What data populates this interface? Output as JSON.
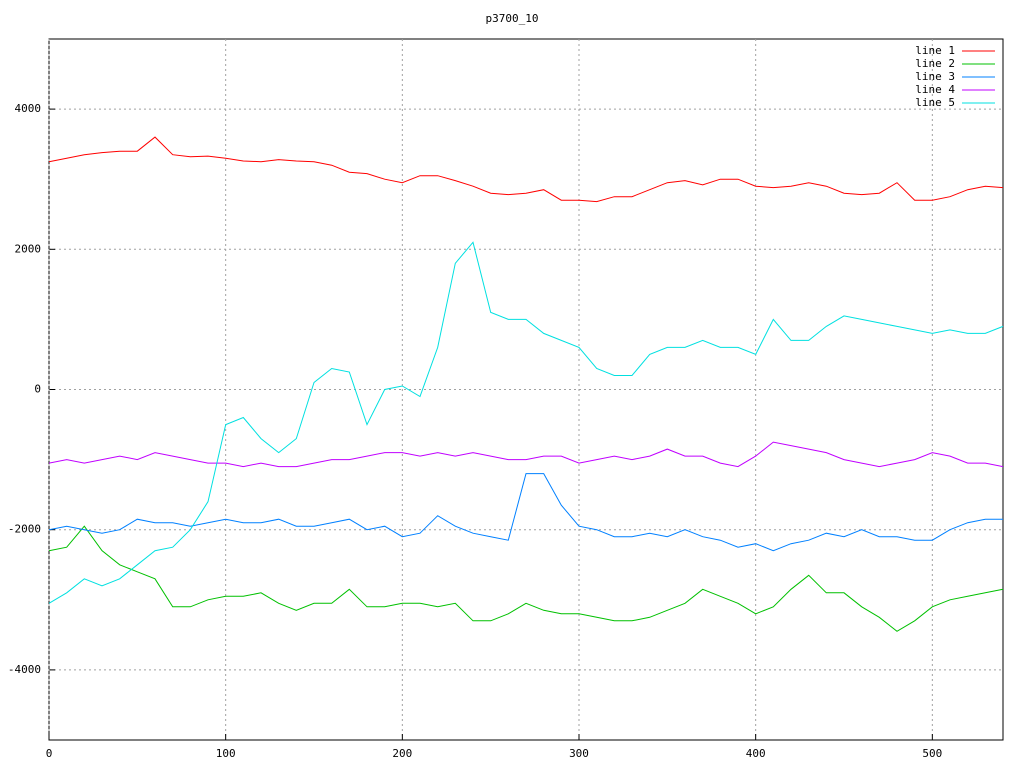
{
  "chart_data": {
    "type": "line",
    "title": "p3700_10",
    "x": [
      0,
      10,
      20,
      30,
      40,
      50,
      60,
      70,
      80,
      90,
      100,
      110,
      120,
      130,
      140,
      150,
      160,
      170,
      180,
      190,
      200,
      210,
      220,
      230,
      240,
      250,
      260,
      270,
      280,
      290,
      300,
      310,
      320,
      330,
      340,
      350,
      360,
      370,
      380,
      390,
      400,
      410,
      420,
      430,
      440,
      450,
      460,
      470,
      480,
      490,
      500,
      510,
      520,
      530,
      540
    ],
    "series": [
      {
        "name": "line 1",
        "color": "#ff0000",
        "values": [
          3250,
          3300,
          3350,
          3380,
          3400,
          3400,
          3600,
          3350,
          3320,
          3330,
          3300,
          3260,
          3250,
          3280,
          3260,
          3250,
          3200,
          3100,
          3080,
          3000,
          2950,
          3050,
          3050,
          2980,
          2900,
          2800,
          2780,
          2800,
          2850,
          2700,
          2700,
          2680,
          2750,
          2750,
          2850,
          2950,
          2980,
          2920,
          3000,
          3000,
          2900,
          2880,
          2900,
          2950,
          2900,
          2800,
          2780,
          2800,
          2950,
          2700,
          2700,
          2750,
          2850,
          2900,
          2880
        ]
      },
      {
        "name": "line 2",
        "color": "#00c000",
        "values": [
          -2300,
          -2250,
          -1950,
          -2300,
          -2500,
          -2600,
          -2700,
          -3100,
          -3100,
          -3000,
          -2950,
          -2950,
          -2900,
          -3050,
          -3150,
          -3050,
          -3050,
          -2850,
          -3100,
          -3100,
          -3050,
          -3050,
          -3100,
          -3050,
          -3300,
          -3300,
          -3200,
          -3050,
          -3150,
          -3200,
          -3200,
          -3250,
          -3300,
          -3300,
          -3250,
          -3150,
          -3050,
          -2850,
          -2950,
          -3050,
          -3200,
          -3100,
          -2850,
          -2650,
          -2900,
          -2900,
          -3100,
          -3250,
          -3450,
          -3300,
          -3100,
          -3000,
          -2950,
          -2900,
          -2850
        ]
      },
      {
        "name": "line 3",
        "color": "#0080ff",
        "values": [
          -2000,
          -1950,
          -2000,
          -2050,
          -2000,
          -1850,
          -1900,
          -1900,
          -1950,
          -1900,
          -1850,
          -1900,
          -1900,
          -1850,
          -1950,
          -1950,
          -1900,
          -1850,
          -2000,
          -1950,
          -2100,
          -2050,
          -1800,
          -1950,
          -2050,
          -2100,
          -2150,
          -1200,
          -1200,
          -1650,
          -1950,
          -2000,
          -2100,
          -2100,
          -2050,
          -2100,
          -2000,
          -2100,
          -2150,
          -2250,
          -2200,
          -2300,
          -2200,
          -2150,
          -2050,
          -2100,
          -2000,
          -2100,
          -2100,
          -2150,
          -2150,
          -2000,
          -1900,
          -1850,
          -1850
        ]
      },
      {
        "name": "line 4",
        "color": "#c000ff",
        "values": [
          -1050,
          -1000,
          -1050,
          -1000,
          -950,
          -1000,
          -900,
          -950,
          -1000,
          -1050,
          -1050,
          -1100,
          -1050,
          -1100,
          -1100,
          -1050,
          -1000,
          -1000,
          -950,
          -900,
          -900,
          -950,
          -900,
          -950,
          -900,
          -950,
          -1000,
          -1000,
          -950,
          -950,
          -1050,
          -1000,
          -950,
          -1000,
          -950,
          -850,
          -950,
          -950,
          -1050,
          -1100,
          -950,
          -750,
          -800,
          -850,
          -900,
          -1000,
          -1050,
          -1100,
          -1050,
          -1000,
          -900,
          -950,
          -1050,
          -1050,
          -1100
        ]
      },
      {
        "name": "line 5",
        "color": "#00e0e0",
        "values": [
          -3050,
          -2900,
          -2700,
          -2800,
          -2700,
          -2500,
          -2300,
          -2250,
          -2000,
          -1600,
          -500,
          -400,
          -700,
          -900,
          -700,
          100,
          300,
          250,
          -500,
          0,
          50,
          -100,
          600,
          1800,
          2100,
          1100,
          1000,
          1000,
          800,
          700,
          600,
          300,
          200,
          200,
          500,
          600,
          600,
          700,
          600,
          600,
          500,
          1000,
          700,
          700,
          900,
          1050,
          1000,
          950,
          900,
          850,
          800,
          850,
          800,
          800,
          900
        ]
      }
    ],
    "xlim": [
      0,
      540
    ],
    "xticks": [
      0,
      100,
      200,
      300,
      400,
      500
    ],
    "ylim": [
      -5000,
      5000
    ],
    "yticks": [
      -4000,
      -2000,
      0,
      2000,
      4000
    ],
    "grid": true,
    "legend": "upper-right"
  }
}
